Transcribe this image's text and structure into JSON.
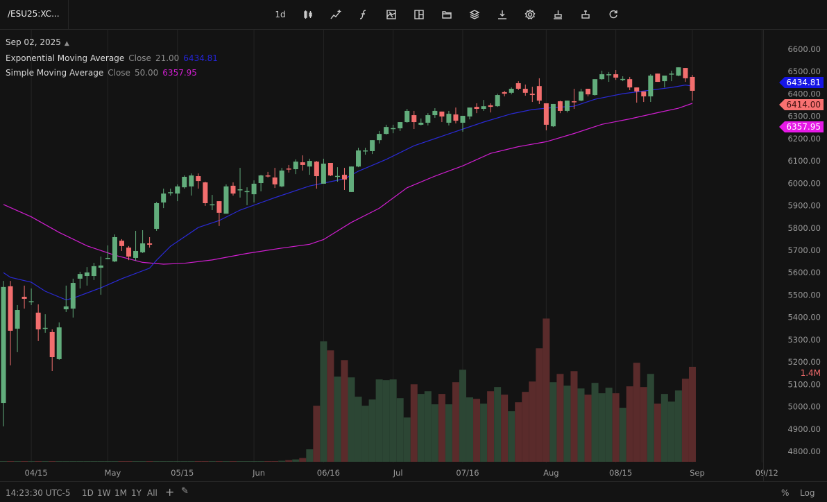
{
  "header": {
    "symbol": "/ESU25:XC...",
    "interval": "1d",
    "tools": [
      "candle-style-icon",
      "indicators-icon",
      "function-icon",
      "image-icon",
      "layout-icon",
      "folder-icon",
      "layers-icon",
      "download-icon",
      "gear-icon",
      "stamp-icon",
      "stamp-alt-icon",
      "refresh-icon"
    ]
  },
  "legend": {
    "date": "Sep 02, 2025",
    "ema": {
      "name": "Exponential Moving Average",
      "source": "Close",
      "length": "21.00",
      "value": "6434.81"
    },
    "sma": {
      "name": "Simple Moving Average",
      "source": "Close",
      "length": "50.00",
      "value": "6357.95"
    }
  },
  "price_tags": {
    "ema": "6434.81",
    "last": "6414.00",
    "sma": "6357.95"
  },
  "volume_label": "1.4M",
  "colors": {
    "up": "#62ad7c",
    "down": "#f26e6e",
    "vol_up": "#2c4634",
    "vol_down": "#5a2b2b",
    "ema": "#2a2ad6",
    "sma": "#d21ed2",
    "ema_tag": "#1616e6",
    "last_tag": "#f87171",
    "sma_tag": "#e619e6"
  },
  "footer": {
    "time": "14:23:30 UTC-5",
    "ranges": [
      "1D",
      "1W",
      "1M",
      "1Y",
      "All"
    ],
    "percent": "%",
    "log": "Log"
  },
  "chart_data": {
    "type": "candlestick",
    "ylim": [
      4750,
      6650
    ],
    "y_ticks": [
      "6600.00",
      "6500.00",
      "6400.00",
      "6300.00",
      "6200.00",
      "6100.00",
      "6000.00",
      "5900.00",
      "5800.00",
      "5700.00",
      "5600.00",
      "5500.00",
      "5400.00",
      "5300.00",
      "5200.00",
      "5100.00",
      "5000.00",
      "4900.00",
      "4800.00"
    ],
    "x_ticks": [
      {
        "label": "04/15",
        "index": 4
      },
      {
        "label": "May",
        "index": 15
      },
      {
        "label": "05/15",
        "index": 25
      },
      {
        "label": "Jun",
        "index": 36
      },
      {
        "label": "06/16",
        "index": 46
      },
      {
        "label": "Jul",
        "index": 56
      },
      {
        "label": "07/16",
        "index": 66
      },
      {
        "label": "Aug",
        "index": 78
      },
      {
        "label": "08/15",
        "index": 88
      },
      {
        "label": "Sep",
        "index": 99
      },
      {
        "label": "09/12",
        "index": 109
      }
    ],
    "columns": [
      "date",
      "open",
      "high",
      "low",
      "close",
      "volume"
    ],
    "candles": [
      [
        "2025-04-09",
        5017,
        5563,
        4912,
        5536,
        5000
      ],
      [
        "2025-04-10",
        5539,
        5563,
        5185,
        5340,
        5000
      ],
      [
        "2025-04-11",
        5349,
        5455,
        5244,
        5433,
        5000
      ],
      [
        "2025-04-14",
        5492,
        5542,
        5439,
        5483,
        5000
      ],
      [
        "2025-04-15",
        5468,
        5529,
        5455,
        5472,
        5000
      ],
      [
        "2025-04-16",
        5421,
        5458,
        5294,
        5346,
        5000
      ],
      [
        "2025-04-17",
        5350,
        5414,
        5331,
        5353,
        5000
      ],
      [
        "2025-04-21",
        5334,
        5346,
        5160,
        5222,
        5000
      ],
      [
        "2025-04-22",
        5213,
        5377,
        5210,
        5355,
        5000
      ],
      [
        "2025-04-23",
        5436,
        5542,
        5424,
        5449,
        5000
      ],
      [
        "2025-04-24",
        5439,
        5573,
        5399,
        5554,
        5000
      ],
      [
        "2025-04-25",
        5573,
        5604,
        5529,
        5594,
        5000
      ],
      [
        "2025-04-28",
        5585,
        5625,
        5542,
        5601,
        5000
      ],
      [
        "2025-04-29",
        5585,
        5644,
        5567,
        5629,
        5000
      ],
      [
        "2025-04-30",
        5622,
        5672,
        5501,
        5632,
        5000
      ],
      [
        "2025-05-01",
        5663,
        5722,
        5660,
        5666,
        5000
      ],
      [
        "2025-05-02",
        5650,
        5771,
        5647,
        5759,
        5000
      ],
      [
        "2025-05-05",
        5743,
        5750,
        5697,
        5719,
        5000
      ],
      [
        "2025-05-06",
        5712,
        5719,
        5656,
        5672,
        5000
      ],
      [
        "2025-05-07",
        5666,
        5787,
        5653,
        5697,
        5000
      ],
      [
        "2025-05-08",
        5691,
        5790,
        5688,
        5731,
        5000
      ],
      [
        "2025-05-09",
        5731,
        5759,
        5712,
        5725,
        5000
      ],
      [
        "2025-05-12",
        5796,
        5917,
        5787,
        5911,
        5000
      ],
      [
        "2025-05-13",
        5914,
        5976,
        5889,
        5954,
        5000
      ],
      [
        "2025-05-14",
        5956,
        5976,
        5945,
        5960,
        5000
      ],
      [
        "2025-05-15",
        5954,
        5995,
        5920,
        5986,
        5000
      ],
      [
        "2025-05-16",
        5982,
        6035,
        5976,
        6029,
        5000
      ],
      [
        "2025-05-19",
        5986,
        6044,
        5945,
        6035,
        5000
      ],
      [
        "2025-05-20",
        6032,
        6044,
        5976,
        6010,
        5000
      ],
      [
        "2025-05-21",
        6004,
        6007,
        5899,
        5911,
        5000
      ],
      [
        "2025-05-22",
        5903,
        5948,
        5880,
        5906,
        5000
      ],
      [
        "2025-05-23",
        5920,
        5920,
        5809,
        5868,
        5000
      ],
      [
        "2025-05-27",
        5864,
        5995,
        5864,
        5986,
        5000
      ],
      [
        "2025-05-28",
        5989,
        6004,
        5945,
        5954,
        5000
      ],
      [
        "2025-05-29",
        5971,
        6069,
        5936,
        5973,
        5000
      ],
      [
        "2025-05-30",
        5963,
        5982,
        5902,
        5965,
        5000
      ],
      [
        "2025-06-02",
        5951,
        6013,
        5914,
        5998,
        5000
      ],
      [
        "2025-06-03",
        6001,
        6038,
        5964,
        6035,
        5000
      ],
      [
        "2025-06-04",
        6035,
        6051,
        6026,
        6032,
        5000
      ],
      [
        "2025-06-05",
        6026,
        6069,
        5979,
        5995,
        5000
      ],
      [
        "2025-06-06",
        5986,
        6069,
        5982,
        6057,
        15000
      ],
      [
        "2025-06-09",
        6066,
        6082,
        6048,
        6063,
        25000
      ],
      [
        "2025-06-10",
        6063,
        6107,
        6041,
        6097,
        35000
      ],
      [
        "2025-06-11",
        6094,
        6125,
        6057,
        6082,
        55000
      ],
      [
        "2025-06-12",
        6075,
        6110,
        6038,
        6100,
        184000
      ],
      [
        "2025-06-13",
        6097,
        6100,
        5976,
        6032,
        826000
      ],
      [
        "2025-06-16",
        5998,
        6110,
        5998,
        6088,
        1775000
      ],
      [
        "2025-06-17",
        6091,
        6091,
        6032,
        6035,
        1642000
      ],
      [
        "2025-06-18",
        6030,
        6072,
        6007,
        6033,
        1255000
      ],
      [
        "2025-06-20",
        6038,
        6069,
        5970,
        6017,
        1499000
      ],
      [
        "2025-06-23",
        5961,
        6075,
        5961,
        6075,
        1244000
      ],
      [
        "2025-06-24",
        6075,
        6159,
        6072,
        6147,
        959000
      ],
      [
        "2025-06-25",
        6145,
        6159,
        6128,
        6147,
        826000
      ],
      [
        "2025-06-26",
        6144,
        6193,
        6131,
        6193,
        918000
      ],
      [
        "2025-06-27",
        6193,
        6234,
        6178,
        6221,
        1214000
      ],
      [
        "2025-06-30",
        6221,
        6262,
        6218,
        6252,
        1204000
      ],
      [
        "2025-07-01",
        6245,
        6262,
        6224,
        6247,
        1214000
      ],
      [
        "2025-07-02",
        6246,
        6274,
        6234,
        6274,
        938000
      ],
      [
        "2025-07-03",
        6274,
        6333,
        6271,
        6324,
        653000
      ],
      [
        "2025-07-07",
        6305,
        6324,
        6243,
        6274,
        1142000
      ],
      [
        "2025-07-08",
        6262,
        6290,
        6259,
        6271,
        1000000
      ],
      [
        "2025-07-09",
        6271,
        6314,
        6259,
        6305,
        1040000
      ],
      [
        "2025-07-10",
        6305,
        6336,
        6293,
        6324,
        847000
      ],
      [
        "2025-07-11",
        6321,
        6321,
        6274,
        6299,
        1000000
      ],
      [
        "2025-07-14",
        6271,
        6324,
        6259,
        6311,
        847000
      ],
      [
        "2025-07-15",
        6308,
        6339,
        6268,
        6280,
        1173000
      ],
      [
        "2025-07-16",
        6271,
        6302,
        6231,
        6302,
        1357000
      ],
      [
        "2025-07-17",
        6299,
        6339,
        6286,
        6339,
        949000
      ],
      [
        "2025-07-18",
        6342,
        6358,
        6314,
        6333,
        928000
      ],
      [
        "2025-07-21",
        6333,
        6373,
        6324,
        6345,
        857000
      ],
      [
        "2025-07-22",
        6349,
        6358,
        6317,
        6342,
        1040000
      ],
      [
        "2025-07-23",
        6345,
        6401,
        6342,
        6395,
        1102000
      ],
      [
        "2025-07-24",
        6408,
        6414,
        6389,
        6401,
        989000
      ],
      [
        "2025-07-25",
        6405,
        6429,
        6398,
        6423,
        745000
      ],
      [
        "2025-07-28",
        6448,
        6457,
        6417,
        6423,
        877000
      ],
      [
        "2025-07-29",
        6423,
        6442,
        6392,
        6405,
        1030000
      ],
      [
        "2025-07-30",
        6401,
        6432,
        6364,
        6395,
        1183000
      ],
      [
        "2025-07-31",
        6435,
        6470,
        6355,
        6370,
        1673000
      ],
      [
        "2025-08-01",
        6358,
        6358,
        6237,
        6262,
        2111000
      ],
      [
        "2025-08-04",
        6255,
        6355,
        6252,
        6355,
        1173000
      ],
      [
        "2025-08-05",
        6367,
        6370,
        6314,
        6324,
        1295000
      ],
      [
        "2025-08-06",
        6324,
        6370,
        6317,
        6370,
        1122000
      ],
      [
        "2025-08-07",
        6367,
        6423,
        6333,
        6364,
        1336000
      ],
      [
        "2025-08-08",
        6370,
        6423,
        6367,
        6411,
        1081000
      ],
      [
        "2025-08-11",
        6423,
        6423,
        6389,
        6398,
        989000
      ],
      [
        "2025-08-12",
        6395,
        6466,
        6392,
        6466,
        1163000
      ],
      [
        "2025-08-13",
        6466,
        6504,
        6463,
        6488,
        1010000
      ],
      [
        "2025-08-14",
        6486,
        6498,
        6454,
        6488,
        1091000
      ],
      [
        "2025-08-15",
        6488,
        6507,
        6463,
        6473,
        1010000
      ],
      [
        "2025-08-18",
        6465,
        6479,
        6457,
        6467,
        796000
      ],
      [
        "2025-08-19",
        6466,
        6476,
        6417,
        6429,
        1112000
      ],
      [
        "2025-08-20",
        6429,
        6429,
        6361,
        6411,
        1459000
      ],
      [
        "2025-08-21",
        6411,
        6411,
        6364,
        6389,
        1102000
      ],
      [
        "2025-08-22",
        6389,
        6488,
        6364,
        6482,
        1295000
      ],
      [
        "2025-08-25",
        6491,
        6491,
        6454,
        6454,
        857000
      ],
      [
        "2025-08-26",
        6457,
        6482,
        6429,
        6482,
        1000000
      ],
      [
        "2025-08-27",
        6488,
        6504,
        6457,
        6491,
        887000
      ],
      [
        "2025-08-28",
        6482,
        6519,
        6479,
        6519,
        1051000
      ],
      [
        "2025-08-29",
        6516,
        6516,
        6454,
        6470,
        1224000
      ],
      [
        "2025-09-02",
        6476,
        6485,
        6370,
        6414,
        1400000
      ]
    ],
    "ema": [
      [
        0,
        5600
      ],
      [
        1,
        5579
      ],
      [
        4,
        5557
      ],
      [
        6,
        5517
      ],
      [
        9,
        5478
      ],
      [
        10,
        5486
      ],
      [
        14,
        5532
      ],
      [
        17,
        5573
      ],
      [
        21,
        5620
      ],
      [
        22,
        5656
      ],
      [
        24,
        5718
      ],
      [
        28,
        5802
      ],
      [
        31,
        5833
      ],
      [
        34,
        5880
      ],
      [
        39,
        5936
      ],
      [
        44,
        5988
      ],
      [
        49,
        6020
      ],
      [
        51,
        6054
      ],
      [
        55,
        6107
      ],
      [
        59,
        6168
      ],
      [
        64,
        6221
      ],
      [
        69,
        6274
      ],
      [
        73,
        6311
      ],
      [
        76,
        6330
      ],
      [
        79,
        6339
      ],
      [
        82,
        6345
      ],
      [
        85,
        6376
      ],
      [
        89,
        6401
      ],
      [
        93,
        6417
      ],
      [
        96,
        6429
      ],
      [
        98,
        6440
      ],
      [
        99,
        6434.81
      ]
    ],
    "sma": [
      [
        0,
        5905
      ],
      [
        4,
        5850
      ],
      [
        8,
        5780
      ],
      [
        12,
        5720
      ],
      [
        16,
        5678
      ],
      [
        20,
        5646
      ],
      [
        23,
        5638
      ],
      [
        26,
        5642
      ],
      [
        30,
        5657
      ],
      [
        35,
        5686
      ],
      [
        40,
        5710
      ],
      [
        44,
        5727
      ],
      [
        46,
        5748
      ],
      [
        50,
        5825
      ],
      [
        54,
        5888
      ],
      [
        58,
        5980
      ],
      [
        62,
        6032
      ],
      [
        66,
        6078
      ],
      [
        70,
        6134
      ],
      [
        74,
        6164
      ],
      [
        78,
        6186
      ],
      [
        82,
        6223
      ],
      [
        86,
        6264
      ],
      [
        90,
        6288
      ],
      [
        94,
        6316
      ],
      [
        97,
        6336
      ],
      [
        99,
        6357.95
      ]
    ],
    "volume_max_label": "1.4M"
  }
}
